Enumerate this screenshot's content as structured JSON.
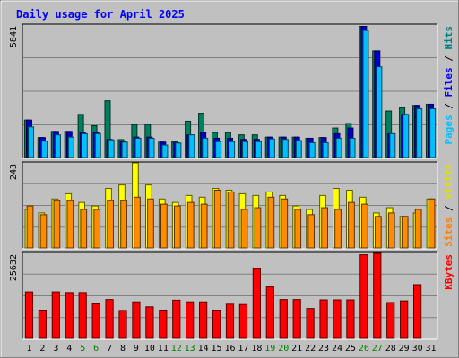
{
  "chart_data": {
    "type": "bar",
    "title": "Daily usage for April 2025",
    "days": [
      "1",
      "2",
      "3",
      "4",
      "5",
      "6",
      "7",
      "8",
      "9",
      "10",
      "11",
      "12",
      "13",
      "14",
      "15",
      "16",
      "17",
      "18",
      "19",
      "20",
      "21",
      "22",
      "23",
      "24",
      "25",
      "26",
      "27",
      "28",
      "29",
      "30",
      "31"
    ],
    "weekend_days": [
      "5",
      "6",
      "12",
      "13",
      "19",
      "20",
      "26",
      "27"
    ],
    "panels": [
      {
        "name": "hits",
        "max_label": "5841",
        "ymax": 5841,
        "right_label": [
          {
            "text": "Pages",
            "color": "#00c0ff"
          },
          {
            "text": " / ",
            "color": "#000000"
          },
          {
            "text": "Files",
            "color": "#0000ff"
          },
          {
            "text": " / ",
            "color": "#000000"
          },
          {
            "text": "Hits",
            "color": "#008080"
          }
        ],
        "series": [
          {
            "name": "Hits",
            "color": "#008060",
            "values": [
              1650,
              880,
              1150,
              1150,
              1900,
              1400,
              2500,
              790,
              1450,
              1450,
              680,
              700,
              1600,
              1950,
              1100,
              1100,
              1000,
              1000,
              900,
              900,
              900,
              850,
              880,
              1300,
              1500,
              5780,
              4700,
              2050,
              2200,
              2300,
              2350
            ]
          },
          {
            "name": "Files",
            "color": "#0000cc",
            "values": [
              1650,
              880,
              1150,
              1150,
              1100,
              1100,
              800,
              700,
              900,
              900,
              680,
              650,
              1000,
              1100,
              850,
              850,
              800,
              800,
              900,
              900,
              900,
              850,
              880,
              1050,
              1300,
              5780,
              4700,
              1050,
              1900,
              2300,
              2350
            ]
          },
          {
            "name": "Pages",
            "color": "#00bfff",
            "values": [
              1350,
              720,
              1000,
              900,
              1050,
              1050,
              780,
              680,
              850,
              850,
              550,
              640,
              1000,
              850,
              700,
              700,
              700,
              700,
              820,
              800,
              750,
              650,
              650,
              850,
              850,
              5600,
              4000,
              1050,
              1900,
              2150,
              2150
            ]
          }
        ]
      },
      {
        "name": "visits",
        "max_label": "243",
        "ymax": 243,
        "right_label": [
          {
            "text": "Sites",
            "color": "#ff8000"
          },
          {
            "text": " / ",
            "color": "#000000"
          },
          {
            "text": "Visits",
            "color": "#e0e000"
          }
        ],
        "series": [
          {
            "name": "Visits",
            "color": "#ffff00",
            "values": [
              110,
              100,
              140,
              155,
              130,
              120,
              170,
              180,
              243,
              180,
              140,
              130,
              150,
              145,
              170,
              165,
              155,
              150,
              160,
              150,
              120,
              110,
              150,
              170,
              165,
              145,
              100,
              115,
              90,
              100,
              140
            ]
          },
          {
            "name": "Sites",
            "color": "#ff8c00",
            "values": [
              120,
              95,
              135,
              135,
              110,
              110,
              135,
              135,
              145,
              140,
              125,
              120,
              130,
              125,
              165,
              160,
              110,
              115,
              145,
              140,
              110,
              95,
              115,
              110,
              130,
              125,
              90,
              100,
              90,
              110,
              140
            ]
          }
        ]
      },
      {
        "name": "kbytes",
        "max_label": "25632",
        "ymax": 25632,
        "right_label": [
          {
            "text": "KBytes",
            "color": "#ff0000"
          }
        ],
        "series": [
          {
            "name": "KBytes",
            "color": "#ff0000",
            "values": [
              14000,
              8500,
              14000,
              13800,
              13800,
              10400,
              11700,
              8400,
              11000,
              9500,
              8500,
              11500,
              11000,
              11000,
              8500,
              10300,
              10200,
              21000,
              15500,
              11700,
              11700,
              9000,
              11600,
              11600,
              11600,
              25200,
              25632,
              10800,
              11300,
              16200,
              null
            ]
          }
        ]
      }
    ]
  }
}
